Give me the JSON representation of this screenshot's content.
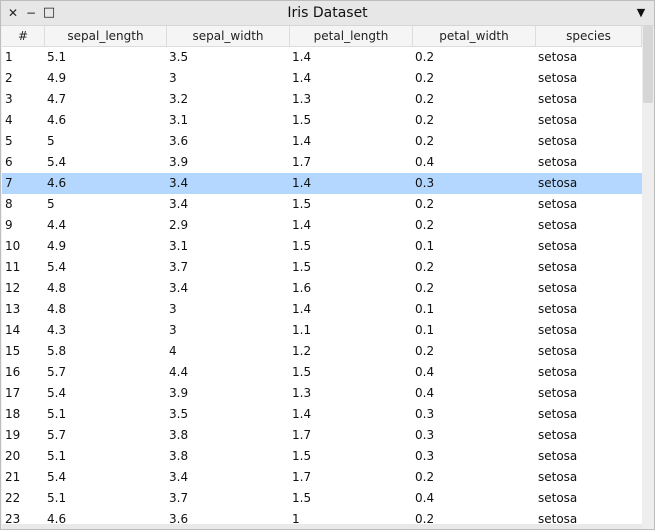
{
  "window": {
    "title": "Iris Dataset",
    "close_glyph": "✕",
    "minimize_glyph": "−",
    "maximize_glyph": "□",
    "menu_glyph": "▼"
  },
  "table": {
    "columns": [
      "#",
      "sepal_length",
      "sepal_width",
      "petal_length",
      "petal_width",
      "species"
    ],
    "selected_row_index": 6,
    "rows": [
      [
        "1",
        "5.1",
        "3.5",
        "1.4",
        "0.2",
        "setosa"
      ],
      [
        "2",
        "4.9",
        "3",
        "1.4",
        "0.2",
        "setosa"
      ],
      [
        "3",
        "4.7",
        "3.2",
        "1.3",
        "0.2",
        "setosa"
      ],
      [
        "4",
        "4.6",
        "3.1",
        "1.5",
        "0.2",
        "setosa"
      ],
      [
        "5",
        "5",
        "3.6",
        "1.4",
        "0.2",
        "setosa"
      ],
      [
        "6",
        "5.4",
        "3.9",
        "1.7",
        "0.4",
        "setosa"
      ],
      [
        "7",
        "4.6",
        "3.4",
        "1.4",
        "0.3",
        "setosa"
      ],
      [
        "8",
        "5",
        "3.4",
        "1.5",
        "0.2",
        "setosa"
      ],
      [
        "9",
        "4.4",
        "2.9",
        "1.4",
        "0.2",
        "setosa"
      ],
      [
        "10",
        "4.9",
        "3.1",
        "1.5",
        "0.1",
        "setosa"
      ],
      [
        "11",
        "5.4",
        "3.7",
        "1.5",
        "0.2",
        "setosa"
      ],
      [
        "12",
        "4.8",
        "3.4",
        "1.6",
        "0.2",
        "setosa"
      ],
      [
        "13",
        "4.8",
        "3",
        "1.4",
        "0.1",
        "setosa"
      ],
      [
        "14",
        "4.3",
        "3",
        "1.1",
        "0.1",
        "setosa"
      ],
      [
        "15",
        "5.8",
        "4",
        "1.2",
        "0.2",
        "setosa"
      ],
      [
        "16",
        "5.7",
        "4.4",
        "1.5",
        "0.4",
        "setosa"
      ],
      [
        "17",
        "5.4",
        "3.9",
        "1.3",
        "0.4",
        "setosa"
      ],
      [
        "18",
        "5.1",
        "3.5",
        "1.4",
        "0.3",
        "setosa"
      ],
      [
        "19",
        "5.7",
        "3.8",
        "1.7",
        "0.3",
        "setosa"
      ],
      [
        "20",
        "5.1",
        "3.8",
        "1.5",
        "0.3",
        "setosa"
      ],
      [
        "21",
        "5.4",
        "3.4",
        "1.7",
        "0.2",
        "setosa"
      ],
      [
        "22",
        "5.1",
        "3.7",
        "1.5",
        "0.4",
        "setosa"
      ],
      [
        "23",
        "4.6",
        "3.6",
        "1",
        "0.2",
        "setosa"
      ]
    ]
  },
  "scroll": {
    "vertical_position_fraction": 0.0,
    "vertical_visible_fraction": 0.153
  },
  "colors": {
    "selection": "#b3d7ff"
  }
}
